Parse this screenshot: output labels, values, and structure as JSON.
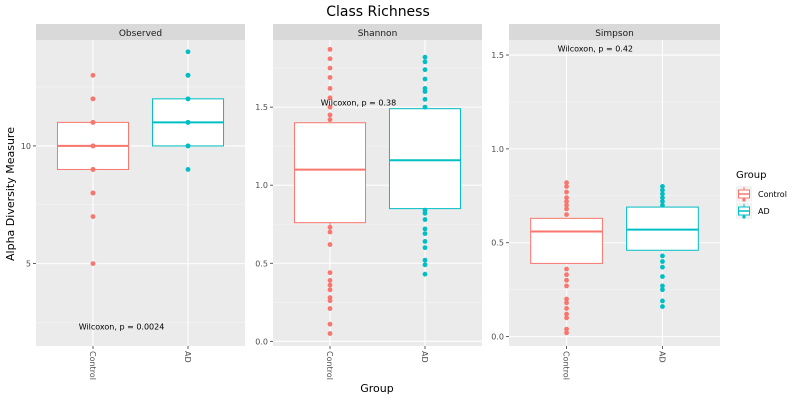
{
  "chart_data": {
    "type": "boxplot",
    "title": "Class Richness",
    "xlabel": "Group",
    "ylabel": "Alpha Diversity Measure",
    "legend": {
      "title": "Group",
      "position": "right",
      "entries": [
        {
          "label": "Control",
          "color": "#F8766D"
        },
        {
          "label": "AD",
          "color": "#00BFC4"
        }
      ]
    },
    "panels": [
      {
        "name": "Observed",
        "strip_label": "Observed",
        "ylim": [
          1.5,
          14.5
        ],
        "yticks": [
          5,
          10
        ],
        "ytick_labels": [
          "5",
          "10"
        ],
        "annotation": {
          "text": "Wilcoxon, p = 0.0024",
          "x": 1.3,
          "y": 2.2
        },
        "groups": [
          {
            "name": "Control",
            "color": "#F8766D",
            "stats": {
              "lower_whisker": 9,
              "q1": 9,
              "median": 10,
              "q3": 11,
              "upper_whisker": 11
            },
            "points": [
              5,
              7,
              8,
              8,
              9,
              9,
              10,
              10,
              11,
              11,
              12,
              12,
              13
            ]
          },
          {
            "name": "AD",
            "color": "#00BFC4",
            "stats": {
              "lower_whisker": 10,
              "q1": 10,
              "median": 11,
              "q3": 12,
              "upper_whisker": 12
            },
            "points": [
              9,
              10,
              10,
              11,
              11,
              12,
              12,
              13,
              13,
              14
            ]
          }
        ]
      },
      {
        "name": "Shannon",
        "strip_label": "Shannon",
        "ylim": [
          -0.03,
          1.93
        ],
        "yticks": [
          0,
          0.5,
          1,
          1.5
        ],
        "ytick_labels": [
          "0.0",
          "0.5",
          "1.0",
          "1.5"
        ],
        "annotation": {
          "text": "Wilcoxon, p = 0.38",
          "x": 1.3,
          "y": 1.51
        },
        "groups": [
          {
            "name": "Control",
            "color": "#F8766D",
            "stats": {
              "lower_whisker": 0.73,
              "q1": 0.76,
              "median": 1.1,
              "q3": 1.4,
              "upper_whisker": 1.4
            },
            "points": [
              0.05,
              0.11,
              0.21,
              0.26,
              0.28,
              0.33,
              0.36,
              0.39,
              0.44,
              0.62,
              0.7,
              0.73,
              1.42,
              1.45,
              1.5,
              1.56,
              1.62,
              1.69,
              1.75,
              1.81,
              1.87
            ]
          },
          {
            "name": "AD",
            "color": "#00BFC4",
            "stats": {
              "lower_whisker": 0.85,
              "q1": 0.85,
              "median": 1.16,
              "q3": 1.49,
              "upper_whisker": 1.49
            },
            "points": [
              0.43,
              0.49,
              0.52,
              0.6,
              0.64,
              0.69,
              0.72,
              0.78,
              0.82,
              0.84,
              1.5,
              1.55,
              1.6,
              1.62,
              1.68,
              1.74,
              1.79,
              1.82
            ]
          }
        ]
      },
      {
        "name": "Simpson",
        "strip_label": "Simpson",
        "ylim": [
          -0.05,
          1.58
        ],
        "yticks": [
          0,
          0.5,
          1,
          1.5
        ],
        "ytick_labels": [
          "0.0",
          "0.5",
          "1.0",
          "1.5"
        ],
        "annotation": {
          "text": "Wilcoxon, p = 0.42",
          "x": 1.3,
          "y": 1.52
        },
        "groups": [
          {
            "name": "Control",
            "color": "#F8766D",
            "stats": {
              "lower_whisker": 0.39,
              "q1": 0.39,
              "median": 0.56,
              "q3": 0.63,
              "upper_whisker": 0.63
            },
            "points": [
              0.02,
              0.04,
              0.1,
              0.12,
              0.15,
              0.18,
              0.2,
              0.27,
              0.3,
              0.33,
              0.36,
              0.65,
              0.68,
              0.7,
              0.72,
              0.74,
              0.77,
              0.8,
              0.82
            ]
          },
          {
            "name": "AD",
            "color": "#00BFC4",
            "stats": {
              "lower_whisker": 0.46,
              "q1": 0.46,
              "median": 0.57,
              "q3": 0.69,
              "upper_whisker": 0.69
            },
            "points": [
              0.16,
              0.19,
              0.25,
              0.27,
              0.32,
              0.37,
              0.4,
              0.43,
              0.7,
              0.72,
              0.74,
              0.76,
              0.78,
              0.8
            ]
          }
        ]
      }
    ]
  }
}
